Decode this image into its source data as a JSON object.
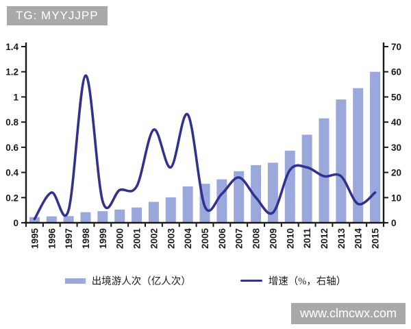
{
  "watermarks": {
    "top": "TG: MYYJJPP",
    "bottom": "www.clmcwx.com"
  },
  "colors": {
    "bar": "#9aa8dc",
    "line": "#32318e",
    "axis": "#1a1a1a",
    "tick_label": "#1a1a1a",
    "watermark_bg": "#a9a9a9",
    "watermark_text": "#ffffff",
    "background": "#ffffff"
  },
  "chart_data": {
    "type": "bar",
    "title": "",
    "categories": [
      "1995",
      "1996",
      "1997",
      "1998",
      "1999",
      "2000",
      "2001",
      "2002",
      "2003",
      "2004",
      "2005",
      "2006",
      "2007",
      "2008",
      "2009",
      "2010",
      "2011",
      "2012",
      "2013",
      "2014",
      "2015"
    ],
    "series": [
      {
        "name": "出境游人次（亿人次）",
        "type": "bar",
        "y_axis": "left",
        "values": [
          0.045,
          0.051,
          0.053,
          0.084,
          0.092,
          0.105,
          0.121,
          0.166,
          0.202,
          0.289,
          0.31,
          0.345,
          0.41,
          0.458,
          0.477,
          0.573,
          0.7,
          0.83,
          0.98,
          1.07,
          1.2
        ]
      },
      {
        "name": "增速（%，右轴）",
        "type": "line",
        "y_axis": "right",
        "values": [
          1.5,
          12,
          5,
          58.5,
          8.5,
          13,
          14.5,
          37,
          22,
          43,
          6.5,
          11.5,
          18,
          10,
          4,
          21,
          22,
          18.5,
          18.5,
          7.5,
          12
        ]
      }
    ],
    "left_axis": {
      "range": [
        0,
        1.4
      ],
      "ticks": [
        0,
        0.2,
        0.4,
        0.6,
        0.8,
        1,
        1.2,
        1.4
      ],
      "tick_labels": [
        "0",
        "0.2",
        "0.4",
        "0.6",
        "0.8",
        "1",
        "1.2",
        "1.4"
      ]
    },
    "right_axis": {
      "range": [
        0,
        70
      ],
      "ticks": [
        0,
        10,
        20,
        30,
        40,
        50,
        60,
        70
      ],
      "tick_labels": [
        "0",
        "10",
        "20",
        "30",
        "40",
        "50",
        "60",
        "70"
      ]
    },
    "grid": false,
    "legend_position": "bottom"
  }
}
